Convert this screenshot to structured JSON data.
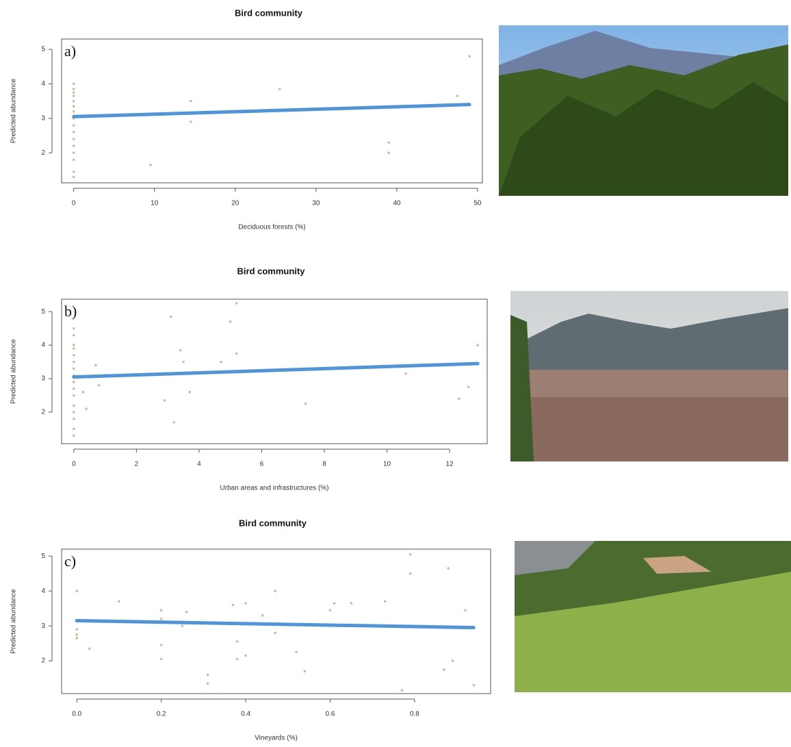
{
  "chart_data": [
    {
      "type": "scatter",
      "title": "Bird community",
      "panel": "a)",
      "x_label": "Deciduous forests (%)",
      "y_label": "Predicted abundance",
      "xlim": [
        -1.5,
        50.6
      ],
      "ylim": [
        1.13,
        5.3
      ],
      "xticks": [
        0,
        10,
        20,
        30,
        40,
        50
      ],
      "yticks": [
        2,
        3,
        4,
        5
      ],
      "point_color": "#d4b89c",
      "fit_color": "#3c8ad8",
      "x": [
        0,
        0,
        0,
        0,
        0,
        0,
        0,
        0,
        0,
        0,
        0,
        0,
        0,
        0,
        0,
        0,
        9.5,
        14.5,
        14.5,
        25.5,
        39,
        39,
        47.5,
        49
      ],
      "y": [
        1.3,
        1.45,
        1.8,
        2.0,
        2.2,
        2.4,
        2.6,
        2.8,
        3.0,
        3.2,
        3.35,
        3.5,
        3.65,
        3.75,
        3.85,
        4.0,
        1.65,
        3.5,
        2.9,
        3.85,
        2.3,
        2.0,
        3.65,
        4.8
      ],
      "fit": {
        "x": [
          0,
          49
        ],
        "y": [
          3.05,
          3.4
        ]
      }
    },
    {
      "type": "scatter",
      "title": "Bird community",
      "panel": "b)",
      "x_label": "Urban areas and infrastructures (%)",
      "y_label": "Predicted abundance",
      "xlim": [
        -0.39,
        13.2
      ],
      "ylim": [
        1.06,
        5.37
      ],
      "xticks": [
        0,
        2,
        4,
        6,
        8,
        10,
        12
      ],
      "yticks": [
        2,
        3,
        4,
        5
      ],
      "point_color": "#d4b89c",
      "fit_color": "#3c8ad8",
      "x": [
        0,
        0,
        0,
        0,
        0,
        0,
        0,
        0,
        0,
        0,
        0,
        0,
        0,
        0,
        0,
        0,
        0.7,
        0.3,
        0.4,
        1,
        0.8,
        3.1,
        3.4,
        3.5,
        2.9,
        3.2,
        3.7,
        4.7,
        5,
        5.2,
        5.2,
        7.4,
        10.6,
        12.3,
        12.6,
        12.9
      ],
      "y": [
        1.3,
        1.5,
        1.8,
        2.0,
        2.2,
        2.5,
        2.7,
        2.9,
        3.1,
        3.3,
        3.5,
        3.7,
        3.9,
        4.0,
        4.3,
        4.5,
        3.4,
        2.6,
        2.1,
        3.1,
        2.8,
        4.85,
        3.85,
        3.5,
        2.35,
        1.7,
        2.6,
        3.5,
        4.7,
        5.25,
        3.75,
        2.25,
        3.15,
        2.4,
        2.75,
        4.0
      ],
      "fit": {
        "x": [
          0,
          12.9
        ],
        "y": [
          3.05,
          3.45
        ]
      }
    },
    {
      "type": "scatter",
      "title": "Bird community",
      "panel": "c)",
      "x_label": "Vineyards (%)",
      "y_label": "Predicted abundance",
      "xlim": [
        -0.036,
        0.98
      ],
      "ylim": [
        1.06,
        5.2
      ],
      "xticks": [
        {
          "value": 0,
          "label": "0.0"
        },
        0.2,
        0.4,
        0.6,
        0.8
      ],
      "yticks": [
        2,
        3,
        4,
        5
      ],
      "point_color": "#d4b89c",
      "fit_color": "#3c8ad8",
      "x": [
        0,
        0,
        0,
        0,
        0.03,
        0.1,
        0.2,
        0.2,
        0.2,
        0.2,
        0.26,
        0.25,
        0.31,
        0.31,
        0.37,
        0.38,
        0.38,
        0.4,
        0.4,
        0.44,
        0.47,
        0.47,
        0.52,
        0.54,
        0.6,
        0.61,
        0.65,
        0.73,
        0.77,
        0.79,
        0.79,
        0.87,
        0.88,
        0.89,
        0.92,
        0.94
      ],
      "y": [
        4.0,
        2.75,
        2.65,
        2.9,
        2.35,
        3.7,
        3.45,
        3.2,
        2.45,
        2.05,
        3.4,
        3.0,
        1.6,
        1.35,
        3.6,
        2.55,
        2.05,
        3.65,
        2.15,
        3.3,
        4.0,
        2.8,
        2.25,
        1.7,
        3.45,
        3.65,
        3.65,
        3.7,
        1.15,
        5.05,
        4.5,
        1.75,
        4.65,
        2.0,
        3.45,
        1.3
      ],
      "fit": {
        "x": [
          0,
          0.94
        ],
        "y": [
          3.15,
          2.95
        ]
      }
    }
  ]
}
